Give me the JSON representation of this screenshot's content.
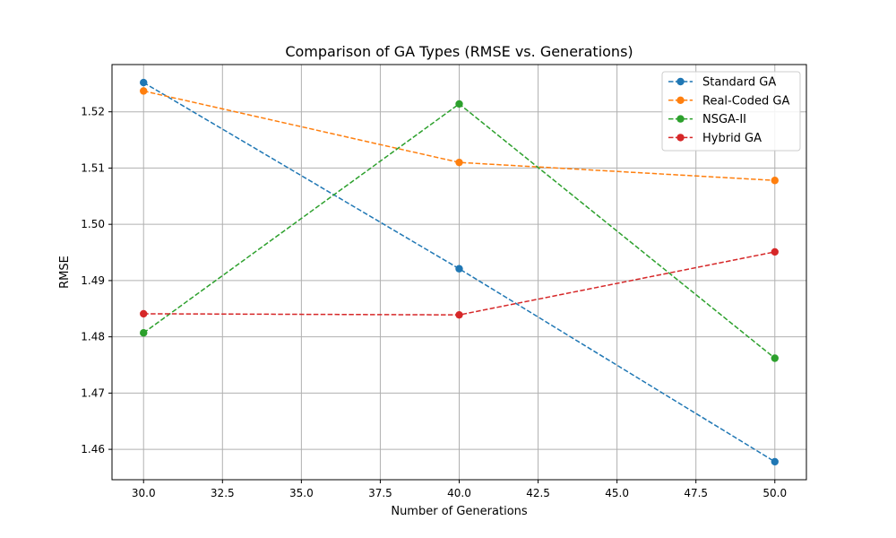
{
  "chart_data": {
    "type": "line",
    "title": "Comparison of GA Types (RMSE vs. Generations)",
    "xlabel": "Number of Generations",
    "ylabel": "RMSE",
    "xlim": [
      29.0,
      51.0
    ],
    "ylim": [
      1.4546,
      1.5284
    ],
    "xticks": [
      30.0,
      32.5,
      35.0,
      37.5,
      40.0,
      42.5,
      45.0,
      47.5,
      50.0
    ],
    "xtick_labels": [
      "30.0",
      "32.5",
      "35.0",
      "37.5",
      "40.0",
      "42.5",
      "45.0",
      "47.5",
      "50.0"
    ],
    "yticks": [
      1.46,
      1.47,
      1.48,
      1.49,
      1.5,
      1.51,
      1.52
    ],
    "ytick_labels": [
      "1.46",
      "1.47",
      "1.48",
      "1.49",
      "1.50",
      "1.51",
      "1.52"
    ],
    "grid": true,
    "legend_position": "top-right",
    "x": [
      30,
      40,
      50
    ],
    "series": [
      {
        "name": "Standard GA",
        "color": "#1f77b4",
        "values": [
          1.5252,
          1.4921,
          1.4578
        ]
      },
      {
        "name": "Real-Coded GA",
        "color": "#ff7f0e",
        "values": [
          1.5237,
          1.511,
          1.5078
        ]
      },
      {
        "name": "NSGA-II",
        "color": "#2ca02c",
        "values": [
          1.4807,
          1.5214,
          1.4762
        ]
      },
      {
        "name": "Hybrid GA",
        "color": "#d62728",
        "values": [
          1.4841,
          1.4839,
          1.4951
        ]
      }
    ]
  }
}
